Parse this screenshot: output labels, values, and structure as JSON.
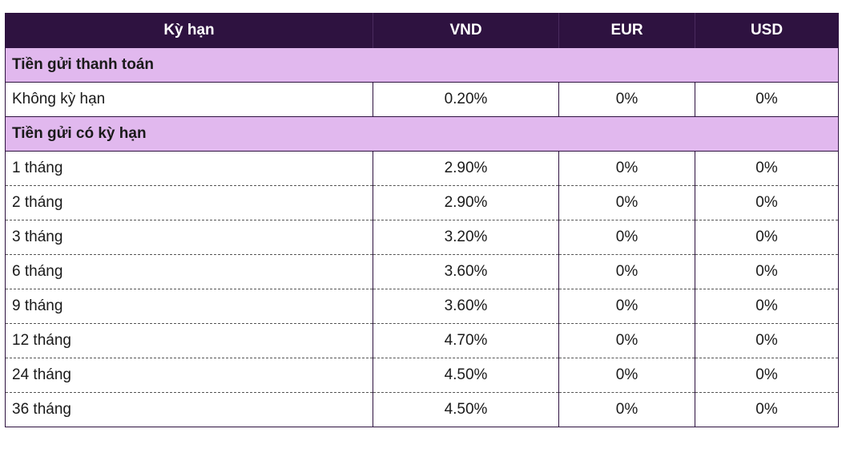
{
  "header": {
    "term": "Kỳ hạn",
    "vnd": "VND",
    "eur": "EUR",
    "usd": "USD"
  },
  "sections": [
    {
      "title": "Tiền gửi thanh toán",
      "rows": [
        {
          "term": "Không kỳ hạn",
          "vnd": "0.20%",
          "eur": "0%",
          "usd": "0%"
        }
      ]
    },
    {
      "title": "Tiền gửi có kỳ hạn",
      "rows": [
        {
          "term": "1 tháng",
          "vnd": "2.90%",
          "eur": "0%",
          "usd": "0%"
        },
        {
          "term": "2 tháng",
          "vnd": "2.90%",
          "eur": "0%",
          "usd": "0%"
        },
        {
          "term": "3 tháng",
          "vnd": "3.20%",
          "eur": "0%",
          "usd": "0%"
        },
        {
          "term": "6 tháng",
          "vnd": "3.60%",
          "eur": "0%",
          "usd": "0%"
        },
        {
          "term": "9 tháng",
          "vnd": "3.60%",
          "eur": "0%",
          "usd": "0%"
        },
        {
          "term": "12 tháng",
          "vnd": "4.70%",
          "eur": "0%",
          "usd": "0%"
        },
        {
          "term": "24 tháng",
          "vnd": "4.50%",
          "eur": "0%",
          "usd": "0%"
        },
        {
          "term": "36 tháng",
          "vnd": "4.50%",
          "eur": "0%",
          "usd": "0%"
        }
      ]
    }
  ],
  "colors": {
    "header_bg": "#2e1240",
    "section_bg": "#e1b8ee",
    "border": "#2e1240"
  }
}
